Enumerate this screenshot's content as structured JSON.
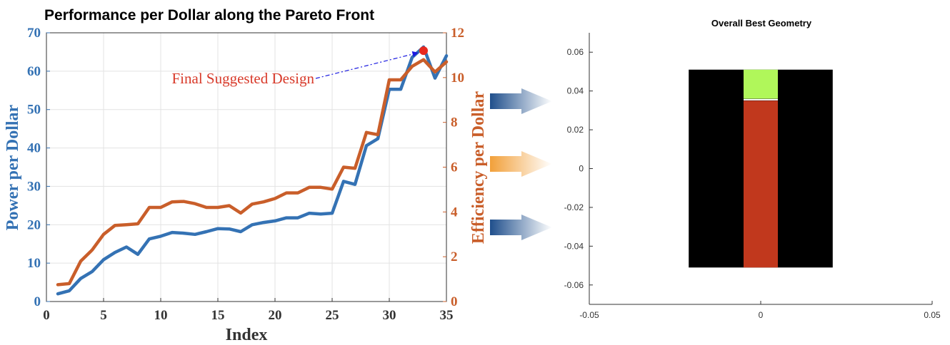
{
  "chart_data": [
    {
      "type": "line",
      "title": "Performance per Dollar along the Pareto Front",
      "xlabel": "Index",
      "ylabel_left": "Power per Dollar",
      "ylabel_right": "Efficiency per Dollar",
      "xlim": [
        0,
        35
      ],
      "ylim_left": [
        0,
        70
      ],
      "ylim_right": [
        0,
        12
      ],
      "xticks": [
        "0",
        "5",
        "10",
        "15",
        "20",
        "25",
        "30",
        "35"
      ],
      "yticks_left": [
        "0",
        "10",
        "20",
        "30",
        "40",
        "50",
        "60",
        "70"
      ],
      "yticks_right": [
        "0",
        "2",
        "4",
        "6",
        "8",
        "10",
        "12"
      ],
      "grid": true,
      "x": [
        1,
        2,
        3,
        4,
        5,
        6,
        7,
        8,
        9,
        10,
        11,
        12,
        13,
        14,
        15,
        16,
        17,
        18,
        19,
        20,
        21,
        22,
        23,
        24,
        25,
        26,
        27,
        28,
        29,
        30,
        31,
        32,
        33,
        34,
        35
      ],
      "series": [
        {
          "axis": "left",
          "color": "#3472b4",
          "values": [
            2,
            2.8,
            6,
            7.8,
            10.9,
            12.8,
            14.2,
            12.3,
            16.3,
            17,
            18,
            17.8,
            17.5,
            18.2,
            19,
            18.9,
            18.2,
            20,
            20.6,
            21,
            21.8,
            21.8,
            23,
            22.8,
            23,
            31.3,
            30.5,
            40.6,
            42.4,
            55.3,
            55.3,
            63.6,
            66.3,
            58.2,
            64
          ]
        },
        {
          "axis": "right",
          "color": "#c95e2a",
          "values": [
            0.75,
            0.8,
            1.8,
            2.3,
            3,
            3.4,
            3.43,
            3.47,
            4.2,
            4.2,
            4.45,
            4.47,
            4.37,
            4.2,
            4.2,
            4.28,
            3.95,
            4.35,
            4.45,
            4.6,
            4.85,
            4.85,
            5.1,
            5.1,
            5.02,
            6,
            5.95,
            7.55,
            7.45,
            9.9,
            9.9,
            10.5,
            10.8,
            10.25,
            10.7
          ]
        }
      ],
      "annotation": {
        "text": "Final Suggested Design",
        "color": "#d83a2a",
        "arrow_color": "#1a1ae0",
        "point": {
          "x": 33,
          "y": 11.2,
          "axis": "right"
        }
      }
    },
    {
      "type": "geometry",
      "title": "Overall Best Geometry",
      "xlim": [
        -0.05,
        0.05
      ],
      "ylim": [
        -0.07,
        0.07
      ],
      "xticks": [
        "-0.05",
        "0",
        "0.05"
      ],
      "yticks": [
        "-0.06",
        "-0.04",
        "-0.02",
        "0",
        "0.02",
        "0.04",
        "0.06"
      ],
      "shapes": [
        {
          "name": "outer",
          "x0": -0.021,
          "x1": 0.021,
          "y0": -0.051,
          "y1": 0.051,
          "color": "#000000"
        },
        {
          "name": "core",
          "x0": -0.005,
          "x1": 0.005,
          "y0": -0.051,
          "y1": 0.035,
          "color": "#c1381d"
        },
        {
          "name": "top",
          "x0": -0.005,
          "x1": 0.005,
          "y0": 0.036,
          "y1": 0.051,
          "color": "#b0f75a"
        }
      ]
    }
  ],
  "arrows": [
    {
      "color": "#1f4f8c"
    },
    {
      "color": "#f2a03a"
    },
    {
      "color": "#1f4f8c"
    }
  ]
}
